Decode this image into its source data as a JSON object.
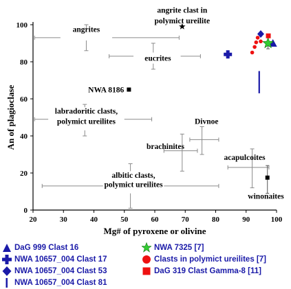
{
  "chart_data": {
    "type": "scatter",
    "xlabel": "Mg# of pyroxene or olivine",
    "ylabel": "An of plagioclase",
    "xlim": [
      20,
      100
    ],
    "ylim": [
      0,
      100
    ],
    "xticks": [
      20,
      30,
      40,
      50,
      60,
      70,
      80,
      90,
      100
    ],
    "yticks": [
      0,
      20,
      40,
      60,
      80,
      100
    ],
    "grid": false,
    "ranges": [
      {
        "label": "angrites",
        "x": 37.5,
        "y": 93,
        "xmin": 20.5,
        "xmax": 68,
        "ymin": 86,
        "ymax": 100
      },
      {
        "label": "eucrites",
        "x": 59.5,
        "y": 83,
        "xmin": 45,
        "xmax": 75,
        "ymin": 76,
        "ymax": 90
      },
      {
        "label": "labradoritic clasts, polymict ureilites",
        "x": 37,
        "y": 49,
        "xmin": 20.5,
        "xmax": 59,
        "ymin": 40,
        "ymax": 57
      },
      {
        "label": "brachinites",
        "x": 69,
        "y": 32,
        "xmin": 63,
        "xmax": 74,
        "ymin": 21,
        "ymax": 41
      },
      {
        "label": "Divnoe",
        "x": 75.5,
        "y": 38,
        "xmin": 71.5,
        "xmax": 81,
        "ymin": 30,
        "ymax": 45
      },
      {
        "label": "acapulcoites",
        "x": 92,
        "y": 23,
        "xmin": 84,
        "xmax": 97.5,
        "ymin": 12,
        "ymax": 33
      },
      {
        "label": "albitic clasts, polymict ureilites",
        "x": 52,
        "y": 13,
        "xmin": 23,
        "xmax": 81,
        "ymin": 1,
        "ymax": 25
      }
    ],
    "labels": [
      {
        "text": "angrite clast in",
        "x": 69,
        "y": 104
      },
      {
        "text": "polymict ureilite",
        "x": 69,
        "y": 100
      },
      {
        "text": "NWA 8186",
        "x": 51,
        "y": 65
      },
      {
        "text": "winonaites",
        "x": 96.5,
        "y": 9
      }
    ],
    "points": [
      {
        "name": "angrite clast in polymict ureilite",
        "marker": "star-black",
        "x": 69,
        "y": 99
      },
      {
        "name": "NWA 8186",
        "marker": "square-black",
        "x": 51.5,
        "y": 65
      },
      {
        "name": "winonaites",
        "marker": "square-black",
        "x": 97,
        "y": 17.5,
        "ymin": 9,
        "ymax": 24
      },
      {
        "name": "DaG 999 Clast 16",
        "marker": "triangle-blue",
        "x": 98.8,
        "y": 90
      },
      {
        "name": "NWA 10657_004 Clast 17",
        "marker": "cross-blue",
        "x": 84,
        "y": 84
      },
      {
        "name": "NWA 10657_004 Clast 53",
        "marker": "diamond-blue",
        "x": 94.8,
        "y": 95
      },
      {
        "name": "NWA 10657_004 Clast 81",
        "marker": "vline-blue",
        "x": 94.3,
        "y": 69,
        "ymin": 63,
        "ymax": 75
      },
      {
        "name": "NWA 7325",
        "marker": "star-green",
        "x": 97.2,
        "y": 90,
        "ymin": 87,
        "ymax": 93
      },
      {
        "name": "Clasts in polymict ureilites",
        "marker": "circle-red",
        "points": [
          [
            92,
            85
          ],
          [
            92.8,
            88
          ],
          [
            93.3,
            90.5
          ],
          [
            93.8,
            93
          ],
          [
            94.8,
            91
          ]
        ]
      },
      {
        "name": "DaG 319 Clast Gamma-8",
        "marker": "square-red",
        "x": 97.3,
        "y": 94
      }
    ],
    "legend": [
      {
        "label": "DaG 999 Clast 16",
        "marker": "triangle-blue"
      },
      {
        "label": "NWA 10657_004 Clast 17",
        "marker": "cross-blue"
      },
      {
        "label": "NWA 10657_004 Clast 53",
        "marker": "diamond-blue"
      },
      {
        "label": "NWA 10657_004 Clast 81",
        "marker": "vline-blue"
      },
      {
        "label": "NWA 7325 [7]",
        "marker": "star-green"
      },
      {
        "label": "Clasts in polymict ureilites [7]",
        "marker": "circle-red"
      },
      {
        "label": "DaG 319 Clast Gamma-8 [11]",
        "marker": "square-red"
      }
    ],
    "legend_placement": "bottom",
    "colors": {
      "blue": "#1a1aa8",
      "green": "#33cc33",
      "red": "#ee1111",
      "black": "#000000",
      "gray": "#8a8a8a"
    }
  }
}
